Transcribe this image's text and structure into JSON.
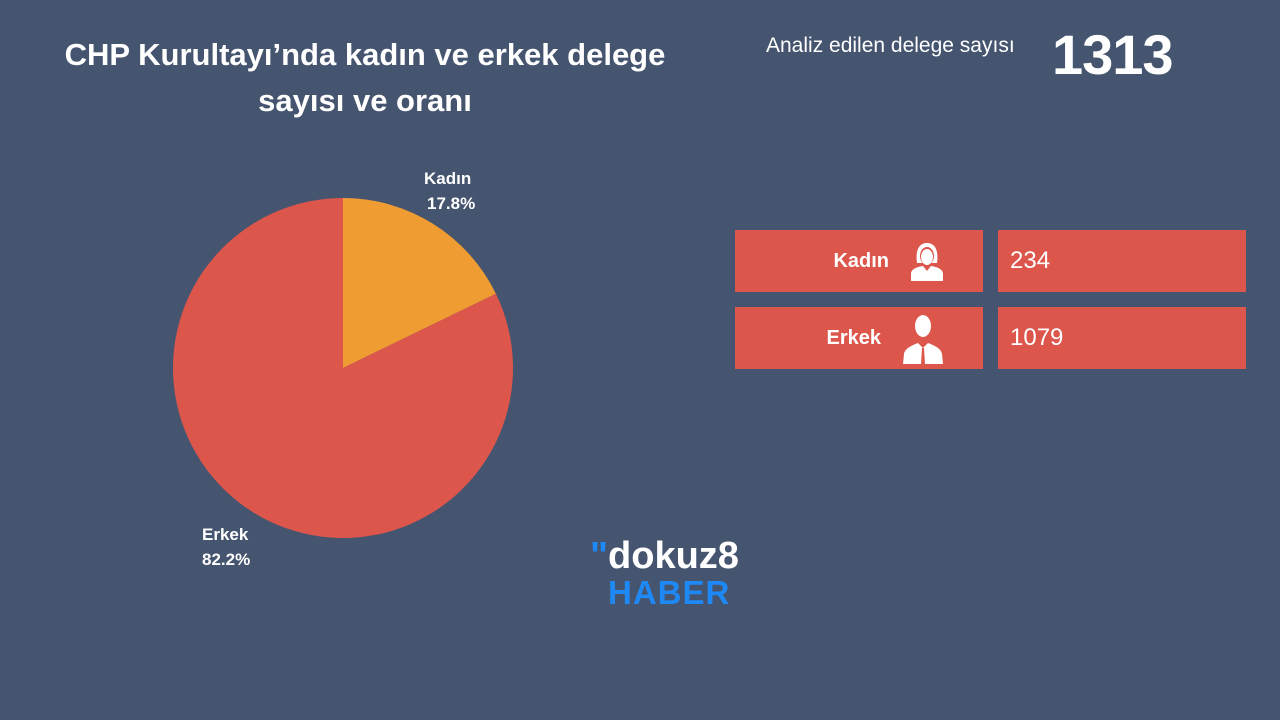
{
  "title": "CHP Kurultayı’nda kadın ve erkek delege sayısı ve oranı",
  "total": {
    "label": "Analiz edilen delege sayısı",
    "value": "1313"
  },
  "colors": {
    "background": "#45546f",
    "kadin": "#ef9d33",
    "erkek": "#dc564c",
    "brand": "#1e88f5"
  },
  "chart_data": {
    "type": "pie",
    "title": "CHP Kurultayı’nda kadın ve erkek delege sayısı ve oranı",
    "slices": [
      {
        "name": "Kadın",
        "value": 17.8,
        "label": "17.8%",
        "color": "#ef9d33"
      },
      {
        "name": "Erkek",
        "value": 82.2,
        "label": "82.2%",
        "color": "#dc564c"
      }
    ]
  },
  "table": [
    {
      "label": "Kadın",
      "icon": "woman-icon",
      "value": "234"
    },
    {
      "label": "Erkek",
      "icon": "man-icon",
      "value": "1079"
    }
  ],
  "logo": {
    "top": "dokuz8",
    "bottom": "HABER"
  }
}
